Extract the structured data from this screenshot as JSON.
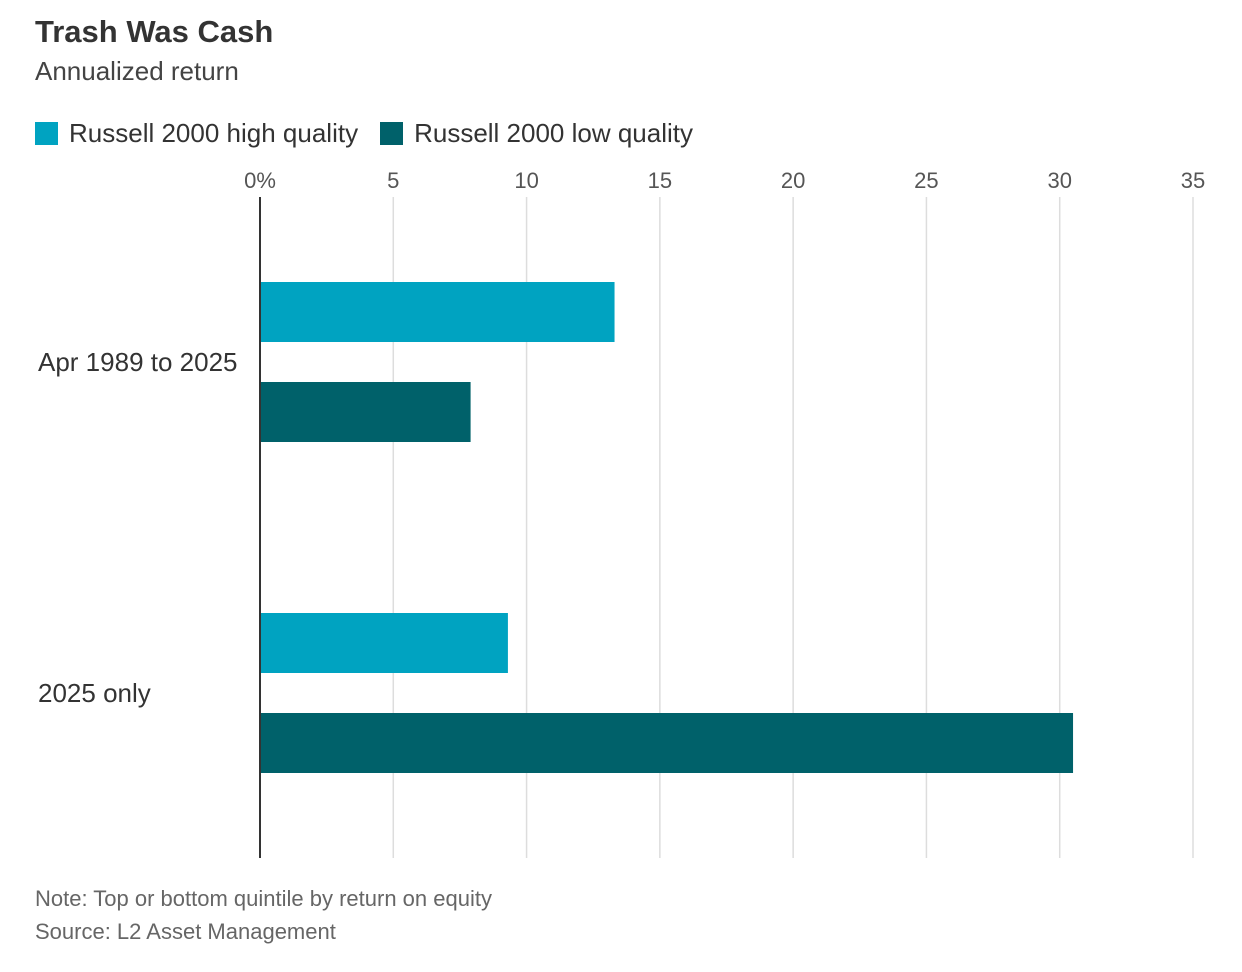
{
  "chart_data": {
    "type": "bar",
    "orientation": "horizontal",
    "title": "Trash Was Cash",
    "subtitle": "Annualized return",
    "categories": [
      "Apr 1989 to 2025",
      "2025 only"
    ],
    "series": [
      {
        "name": "Russell 2000 high quality",
        "color": "#00a3c1",
        "values": [
          13.3,
          9.3
        ]
      },
      {
        "name": "Russell 2000 low quality",
        "color": "#00616a",
        "values": [
          7.9,
          30.5
        ]
      }
    ],
    "xlim": [
      0,
      35
    ],
    "xticks": [
      0,
      5,
      10,
      15,
      20,
      25,
      30,
      35
    ],
    "xtick_labels": [
      "0%",
      "5",
      "10",
      "15",
      "20",
      "25",
      "30",
      "35"
    ],
    "grid": true,
    "legend_position": "top-left",
    "note": "Note: Top or bottom quintile by return on equity",
    "source": "Source: L2 Asset Management"
  }
}
